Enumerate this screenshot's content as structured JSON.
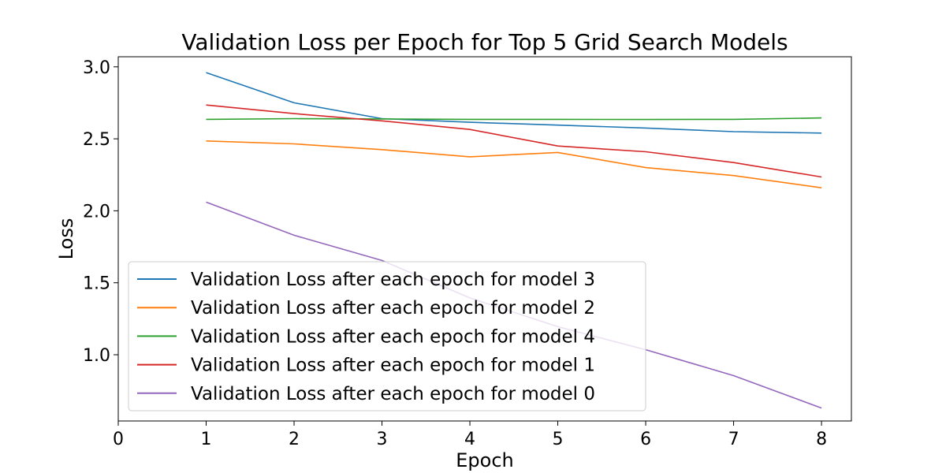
{
  "chart_data": {
    "type": "line",
    "title": "Validation Loss per Epoch for Top 5 Grid Search Models",
    "xlabel": "Epoch",
    "ylabel": "Loss",
    "xlim": [
      0,
      8.34
    ],
    "ylim": [
      0.54,
      3.07
    ],
    "xticks": [
      0,
      1,
      2,
      3,
      4,
      5,
      6,
      7,
      8
    ],
    "yticks": [
      1.0,
      1.5,
      2.0,
      2.5,
      3.0
    ],
    "xtick_labels": [
      "0",
      "1",
      "2",
      "3",
      "4",
      "5",
      "6",
      "7",
      "8"
    ],
    "ytick_labels": [
      "1.0",
      "1.5",
      "2.0",
      "2.5",
      "3.0"
    ],
    "grid": false,
    "legend_position": "lower-left",
    "x": [
      1,
      2,
      3,
      4,
      5,
      6,
      7,
      8
    ],
    "series": [
      {
        "name": "Validation Loss after each epoch  for model 3",
        "color": "#1f77b4",
        "values": [
          2.96,
          2.75,
          2.64,
          2.615,
          2.595,
          2.575,
          2.55,
          2.54
        ]
      },
      {
        "name": "Validation Loss after each epoch  for model 2",
        "color": "#ff7f0e",
        "values": [
          2.485,
          2.465,
          2.425,
          2.375,
          2.405,
          2.3,
          2.245,
          2.16
        ]
      },
      {
        "name": "Validation Loss after each epoch  for model 4",
        "color": "#2ca02c",
        "values": [
          2.635,
          2.64,
          2.638,
          2.635,
          2.635,
          2.634,
          2.635,
          2.645
        ]
      },
      {
        "name": "Validation Loss after each epoch  for model 1",
        "color": "#d62728",
        "values": [
          2.735,
          2.675,
          2.625,
          2.565,
          2.45,
          2.41,
          2.335,
          2.235
        ]
      },
      {
        "name": "Validation Loss after each epoch  for model 0",
        "color": "#9467bd",
        "values": [
          2.06,
          1.83,
          1.655,
          1.395,
          1.195,
          1.035,
          0.855,
          0.63
        ]
      }
    ]
  }
}
